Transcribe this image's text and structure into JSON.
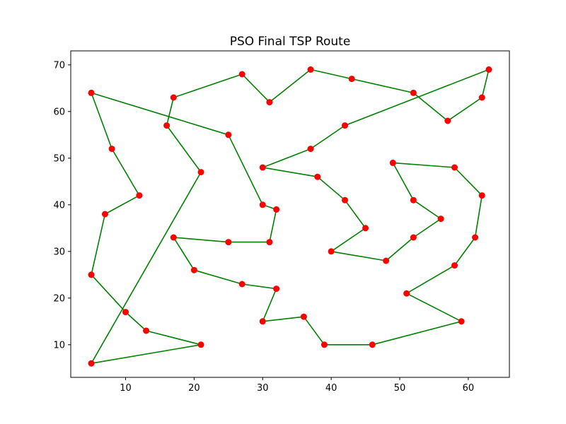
{
  "chart_data": {
    "type": "line",
    "title": "PSO Final TSP Route",
    "xlabel": "",
    "ylabel": "",
    "xlim": [
      2,
      66
    ],
    "ylim": [
      3,
      73
    ],
    "xticks": [
      10,
      20,
      30,
      40,
      50,
      60
    ],
    "yticks": [
      10,
      20,
      30,
      40,
      50,
      60,
      70
    ],
    "grid": false,
    "colors": {
      "route": "#008000",
      "city": "#ff0000"
    },
    "route": [
      [
        5,
        64
      ],
      [
        8,
        52
      ],
      [
        12,
        42
      ],
      [
        7,
        38
      ],
      [
        5,
        25
      ],
      [
        10,
        17
      ],
      [
        13,
        13
      ],
      [
        21,
        10
      ],
      [
        5,
        6
      ],
      [
        21,
        47
      ],
      [
        16,
        57
      ],
      [
        17,
        63
      ],
      [
        27,
        68
      ],
      [
        31,
        62
      ],
      [
        37,
        69
      ],
      [
        43,
        67
      ],
      [
        52,
        64
      ],
      [
        57,
        58
      ],
      [
        62,
        63
      ],
      [
        63,
        69
      ],
      [
        42,
        57
      ],
      [
        37,
        52
      ],
      [
        30,
        48
      ],
      [
        38,
        46
      ],
      [
        42,
        41
      ],
      [
        45,
        35
      ],
      [
        40,
        30
      ],
      [
        48,
        28
      ],
      [
        52,
        33
      ],
      [
        56,
        37
      ],
      [
        52,
        41
      ],
      [
        49,
        49
      ],
      [
        58,
        48
      ],
      [
        62,
        42
      ],
      [
        61,
        33
      ],
      [
        58,
        27
      ],
      [
        51,
        21
      ],
      [
        59,
        15
      ],
      [
        46,
        10
      ],
      [
        39,
        10
      ],
      [
        36,
        16
      ],
      [
        30,
        15
      ],
      [
        32,
        22
      ],
      [
        27,
        23
      ],
      [
        20,
        26
      ],
      [
        17,
        33
      ],
      [
        25,
        32
      ],
      [
        31,
        32
      ],
      [
        32,
        39
      ],
      [
        30,
        40
      ],
      [
        25,
        55
      ],
      [
        5,
        64
      ]
    ]
  }
}
